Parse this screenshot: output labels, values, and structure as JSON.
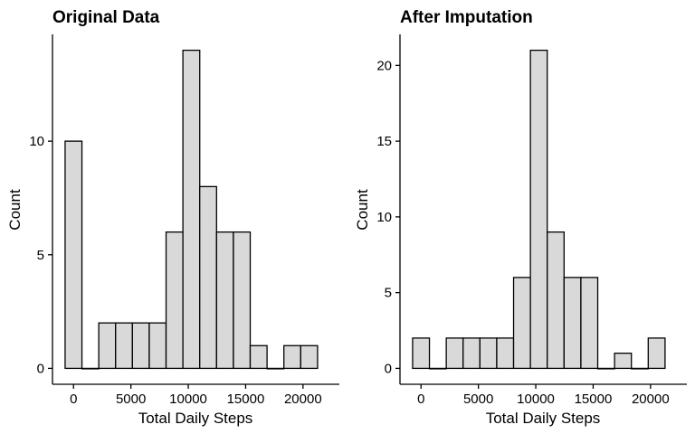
{
  "chart_data": [
    {
      "type": "bar",
      "title": "Original Data",
      "xlabel": "Total Daily Steps",
      "ylabel": "Count",
      "bin_width": 1466.67,
      "bin_start": -733.33,
      "values": [
        10,
        0,
        2,
        2,
        2,
        2,
        6,
        14,
        8,
        6,
        6,
        1,
        0,
        1,
        1
      ],
      "x_ticks": [
        0,
        5000,
        10000,
        15000,
        20000
      ],
      "x_tick_labels": [
        "0",
        "5000",
        "10000",
        "15000",
        "20000"
      ],
      "y_ticks": [
        0,
        5,
        10
      ],
      "y_tick_labels": [
        "0",
        "5",
        "10"
      ],
      "xlim": [
        -1833,
        23167
      ],
      "ylim": [
        -0.7,
        14.7
      ],
      "grid": false,
      "legend": "none"
    },
    {
      "type": "bar",
      "title": "After Imputation",
      "xlabel": "Total Daily Steps",
      "ylabel": "Count",
      "bin_width": 1466.67,
      "bin_start": -733.33,
      "values": [
        2,
        0,
        2,
        2,
        2,
        2,
        6,
        21,
        9,
        6,
        6,
        0,
        1,
        0,
        2
      ],
      "x_ticks": [
        0,
        5000,
        10000,
        15000,
        20000
      ],
      "x_tick_labels": [
        "0",
        "5000",
        "10000",
        "15000",
        "20000"
      ],
      "y_ticks": [
        0,
        5,
        10,
        15,
        20
      ],
      "y_tick_labels": [
        "0",
        "5",
        "10",
        "15",
        "20"
      ],
      "xlim": [
        -1833,
        23167
      ],
      "ylim": [
        -1.05,
        22.05
      ],
      "grid": false,
      "legend": "none"
    }
  ]
}
